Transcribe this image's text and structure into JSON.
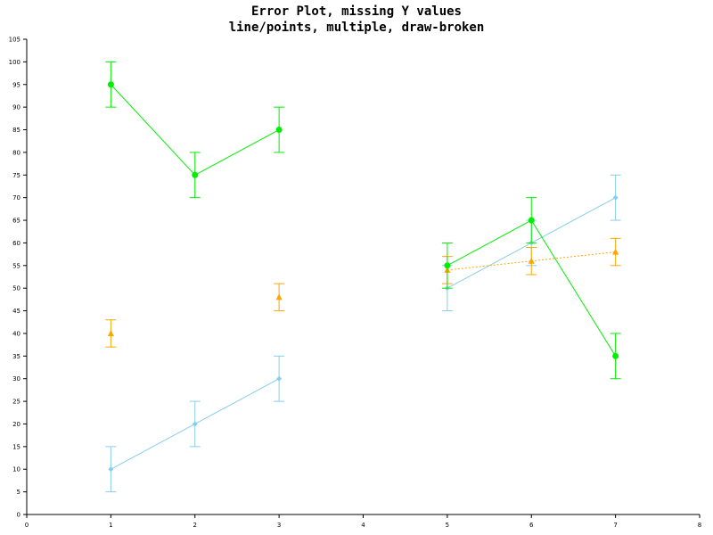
{
  "chart_data": {
    "type": "line",
    "title": "Error Plot, missing Y values",
    "subtitle": "line/points, multiple, draw-broken",
    "xlim": [
      0,
      8
    ],
    "ylim": [
      0,
      105
    ],
    "x_ticks": [
      0,
      1,
      2,
      3,
      4,
      5,
      6,
      7,
      8
    ],
    "y_ticks": [
      0,
      5,
      10,
      15,
      20,
      25,
      30,
      35,
      40,
      45,
      50,
      55,
      60,
      65,
      70,
      75,
      80,
      85,
      90,
      95,
      100,
      105
    ],
    "grid": false,
    "legend": "none",
    "series": [
      {
        "color": "#87ceeb",
        "marker": "diamond",
        "line_style": "solid",
        "x": [
          1,
          2,
          3,
          4,
          5,
          6,
          7
        ],
        "y": [
          10,
          20,
          30,
          null,
          50,
          60,
          70
        ],
        "err": [
          5,
          5,
          5,
          null,
          5,
          5,
          5
        ]
      },
      {
        "color": "#ffa500",
        "marker": "triangle",
        "line_style": "dotted",
        "x": [
          1,
          2,
          3,
          4,
          5,
          6,
          7
        ],
        "y": [
          40,
          null,
          48,
          null,
          54,
          56,
          58
        ],
        "err": [
          3,
          null,
          3,
          null,
          3,
          3,
          3
        ]
      },
      {
        "color": "#00ee00",
        "marker": "circle",
        "line_style": "solid",
        "x": [
          1,
          2,
          3,
          4,
          5,
          6,
          7
        ],
        "y": [
          95,
          75,
          85,
          null,
          55,
          65,
          35
        ],
        "err": [
          5,
          5,
          5,
          null,
          5,
          5,
          5
        ]
      }
    ]
  }
}
